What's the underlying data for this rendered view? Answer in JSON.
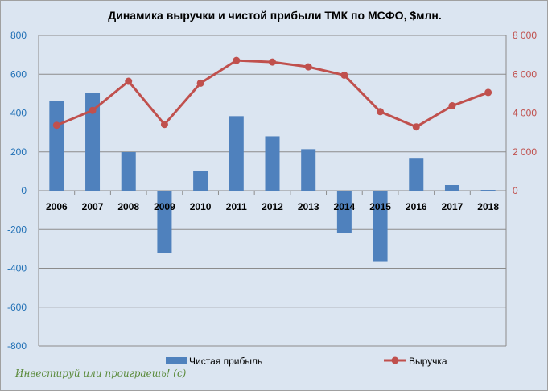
{
  "chart_data": {
    "type": "bar+line",
    "title": "Динамика выручки и чистой прибыли ТМК по МСФО, $млн.",
    "categories": [
      "2006",
      "2007",
      "2008",
      "2009",
      "2010",
      "2011",
      "2012",
      "2013",
      "2014",
      "2015",
      "2016",
      "2017",
      "2018"
    ],
    "series": [
      {
        "name": "Чистая прибыль",
        "type": "bar",
        "axis": "left",
        "color": "#4f81bd",
        "values": [
          462,
          503,
          199,
          -322,
          103,
          384,
          280,
          214,
          -219,
          -367,
          165,
          29,
          4
        ]
      },
      {
        "name": "Выручка",
        "type": "line",
        "axis": "right",
        "color": "#c0504d",
        "values": [
          3369,
          4136,
          5637,
          3410,
          5538,
          6709,
          6627,
          6379,
          5951,
          4070,
          3287,
          4371,
          5060
        ]
      }
    ],
    "left_axis": {
      "range": [
        -800,
        800
      ],
      "ticks": [
        "800",
        "600",
        "400",
        "200",
        "0",
        "-200",
        "-400",
        "-600",
        "-800"
      ],
      "color": "#1f6fb5"
    },
    "right_axis": {
      "range": [
        -8000,
        8000
      ],
      "ticks": [
        "8 000",
        "6 000",
        "4 000",
        "2 000",
        "0"
      ],
      "color": "#c0504d"
    },
    "grid": true,
    "legend": "bottom"
  },
  "watermark": "Инвестируй или проиграешь! (c)"
}
